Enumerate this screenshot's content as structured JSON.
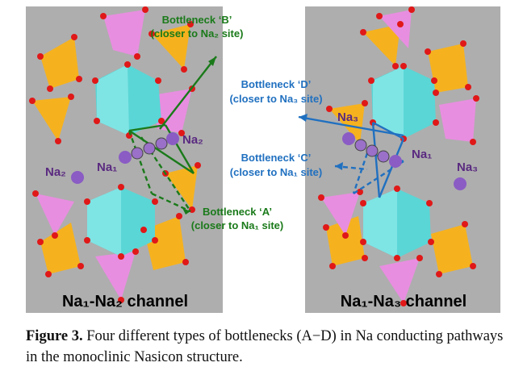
{
  "panel_left": {
    "channel_label": "Na₁-Na₂ channel",
    "bottleneck_b": {
      "line1": "Bottleneck ‘B’",
      "line2": "(closer to Na₂ site)"
    },
    "bottleneck_a": {
      "line1": "Bottleneck ‘A’",
      "line2": "(closer to Na₁ site)"
    },
    "na_labels": {
      "na1": "Na₁",
      "na2_right": "Na₂",
      "na2_left": "Na₂"
    }
  },
  "panel_right": {
    "channel_label": "Na₁-Na₃ channel",
    "bottleneck_d": {
      "line1": "Bottleneck ‘D’",
      "line2": "(closer to Na₃ site)"
    },
    "bottleneck_c": {
      "line1": "Bottleneck ‘C’",
      "line2": "(closer to Na₁ site)"
    },
    "na_labels": {
      "na3_left": "Na₃",
      "na1": "Na₁",
      "na3_right": "Na₃"
    }
  },
  "caption": {
    "label": "Figure 3.",
    "text": " Four different types of bottlenecks (A−D) in Na conducting pathways in the monoclinic Nasicon structure."
  },
  "colors": {
    "panel_bg": "#aeaeae",
    "octahedron": "#5ad6d6",
    "tetra_yellow": "#f6b21e",
    "tetra_pink": "#e88ee0",
    "oxygen": "#e01818",
    "sodium": "#8a5cc4",
    "green_lines": "#1a7a1a",
    "blue_lines": "#2070c0"
  }
}
